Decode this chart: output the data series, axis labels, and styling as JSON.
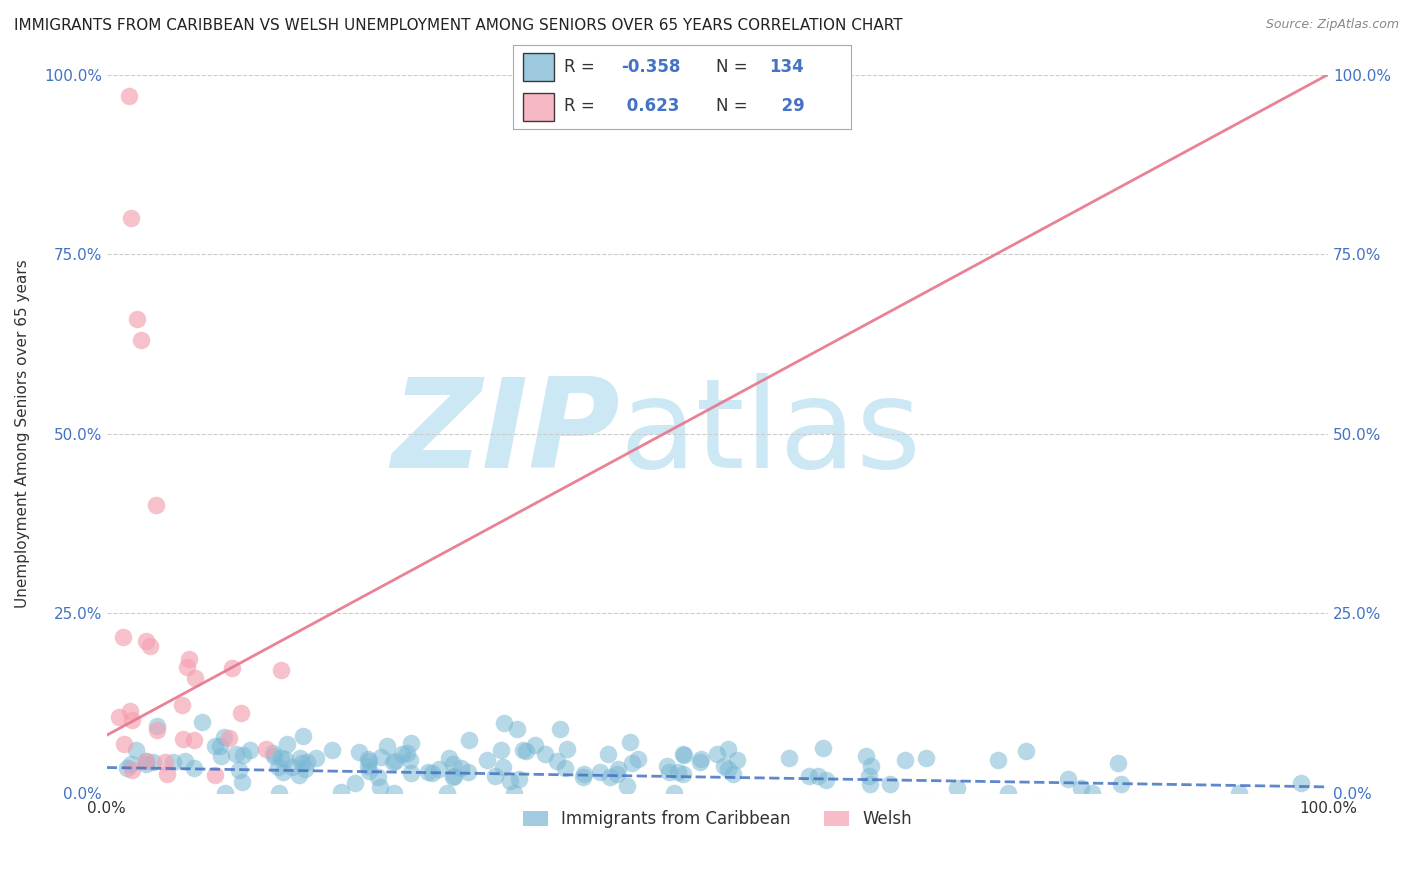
{
  "title": "IMMIGRANTS FROM CARIBBEAN VS WELSH UNEMPLOYMENT AMONG SENIORS OVER 65 YEARS CORRELATION CHART",
  "source": "Source: ZipAtlas.com",
  "ylabel": "Unemployment Among Seniors over 65 years",
  "xlim": [
    0,
    1.0
  ],
  "ylim": [
    0,
    1.0
  ],
  "xtick_labels": [
    "0.0%",
    "100.0%"
  ],
  "ytick_labels": [
    "0.0%",
    "25.0%",
    "50.0%",
    "75.0%",
    "100.0%"
  ],
  "ytick_positions": [
    0.0,
    0.25,
    0.5,
    0.75,
    1.0
  ],
  "blue_R": -0.358,
  "blue_N": 134,
  "pink_R": 0.623,
  "pink_N": 29,
  "blue_color": "#7bb8d4",
  "pink_color": "#f4a0b0",
  "blue_line_color": "#4472c4",
  "pink_line_color": "#e8748a",
  "watermark_zip": "ZIP",
  "watermark_atlas": "atlas",
  "watermark_color": "#cde8f5",
  "legend_label_blue": "Immigrants from Caribbean",
  "legend_label_pink": "Welsh",
  "title_fontsize": 11,
  "source_fontsize": 9,
  "seed": 42,
  "pink_line_x0": 0.0,
  "pink_line_y0": 0.08,
  "pink_line_x1": 1.0,
  "pink_line_y1": 1.0,
  "blue_line_x0": 0.0,
  "blue_line_y0": 0.035,
  "blue_line_x1": 1.0,
  "blue_line_y1": 0.008
}
